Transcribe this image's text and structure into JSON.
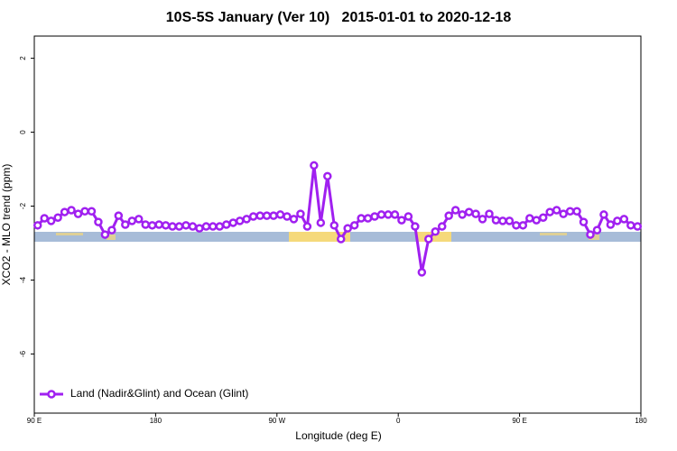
{
  "chart_data": {
    "type": "line",
    "title": "10S-5S January (Ver 10)   2015-01-01 to 2020-12-18",
    "x_label": "Longitude (deg E)",
    "y_label": "XCO2 - MLO trend (ppm)",
    "xlim": [
      90,
      540
    ],
    "ylim": [
      -7.6,
      2.6
    ],
    "xticks": [
      {
        "value": 90,
        "label": "90 E"
      },
      180,
      {
        "value": 270,
        "label": "90 W"
      },
      {
        "value": 360,
        "label": "0"
      },
      {
        "value": 450,
        "label": "90 E"
      },
      {
        "value": 540,
        "label": "180"
      }
    ],
    "yticks": [
      2,
      0,
      -2,
      -4,
      -6
    ],
    "legend": "bottom-left",
    "x": [
      92.5,
      97.5,
      102.5,
      107.5,
      112.5,
      117.5,
      122.5,
      127.5,
      132.5,
      137.5,
      142.5,
      147.5,
      152.5,
      157.5,
      162.5,
      167.5,
      172.5,
      177.5,
      182.5,
      187.5,
      192.5,
      197.5,
      202.5,
      207.5,
      212.5,
      217.5,
      222.5,
      227.5,
      232.5,
      237.5,
      242.5,
      247.5,
      252.5,
      257.5,
      262.5,
      267.5,
      272.5,
      277.5,
      282.5,
      287.5,
      292.5,
      297.5,
      302.5,
      307.5,
      312.5,
      317.5,
      322.5,
      327.5,
      332.5,
      337.5,
      342.5,
      347.5,
      352.5,
      357.5,
      362.5,
      367.5,
      372.5,
      377.5,
      382.5,
      387.5,
      392.5,
      397.5,
      402.5,
      407.5,
      412.5,
      417.5,
      422.5,
      427.5,
      432.5,
      437.5,
      442.5,
      447.5,
      452.5,
      457.5,
      462.5,
      467.5,
      472.5,
      477.5,
      482.5,
      487.5,
      492.5,
      497.5,
      502.5,
      507.5,
      512.5,
      517.5,
      522.5,
      527.5,
      532.5,
      537.5
    ],
    "series": [
      {
        "name": "Land (Nadir&Glint) and Ocean (Glint)",
        "color": "#a020f0",
        "values": [
          -2.52,
          -2.33,
          -2.4,
          -2.31,
          -2.16,
          -2.11,
          -2.21,
          -2.14,
          -2.14,
          -2.43,
          -2.77,
          -2.65,
          -2.26,
          -2.5,
          -2.4,
          -2.35,
          -2.5,
          -2.52,
          -2.5,
          -2.52,
          -2.55,
          -2.55,
          -2.52,
          -2.55,
          -2.6,
          -2.55,
          -2.55,
          -2.55,
          -2.5,
          -2.45,
          -2.4,
          -2.35,
          -2.28,
          -2.26,
          -2.26,
          -2.26,
          -2.23,
          -2.28,
          -2.35,
          -2.21,
          -2.55,
          -0.9,
          -2.45,
          -1.19,
          -2.52,
          -2.89,
          -2.6,
          -2.52,
          -2.33,
          -2.33,
          -2.28,
          -2.23,
          -2.23,
          -2.23,
          -2.38,
          -2.28,
          -2.55,
          -3.79,
          -2.89,
          -2.69,
          -2.55,
          -2.26,
          -2.11,
          -2.23,
          -2.16,
          -2.21,
          -2.35,
          -2.21,
          -2.38,
          -2.4,
          -2.4,
          -2.52,
          -2.52,
          -2.33,
          -2.38,
          -2.31,
          -2.16,
          -2.11,
          -2.21,
          -2.14,
          -2.14,
          -2.43,
          -2.77,
          -2.65,
          -2.23,
          -2.5,
          -2.4,
          -2.35,
          -2.52,
          -2.55
        ]
      }
    ]
  }
}
